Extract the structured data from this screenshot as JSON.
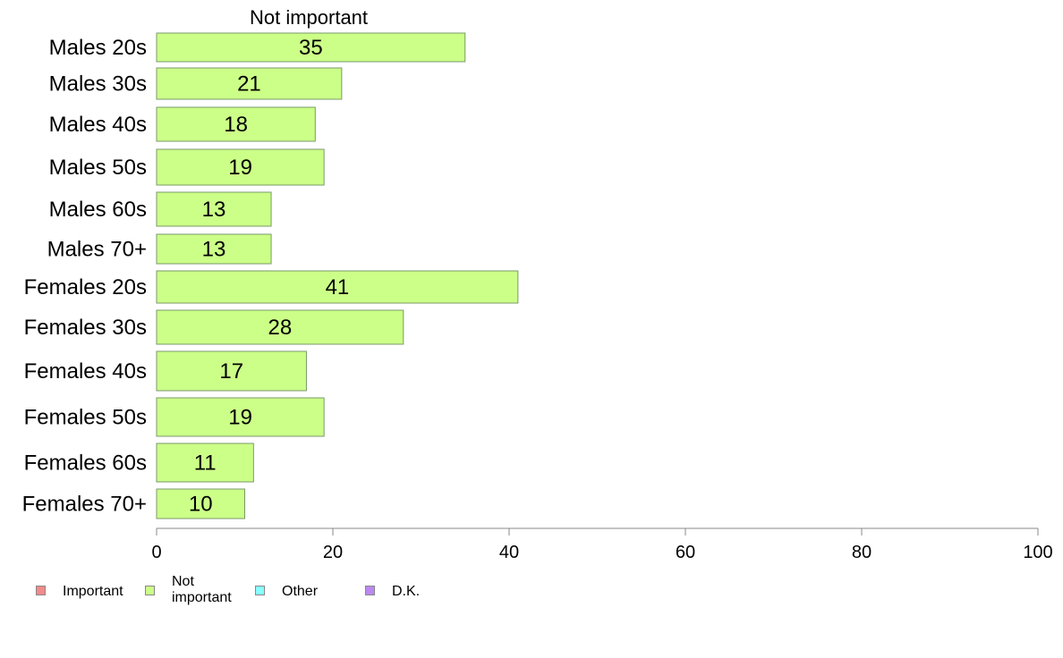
{
  "chart_data": {
    "type": "bar",
    "orientation": "horizontal",
    "title": "Not important",
    "categories": [
      "Males 20s",
      "Males 30s",
      "Males 40s",
      "Males 50s",
      "Males 60s",
      "Males 70+",
      "Females 20s",
      "Females 30s",
      "Females 40s",
      "Females 50s",
      "Females 60s",
      "Females 70+"
    ],
    "series": [
      {
        "name": "Not important",
        "color": "#ccff88",
        "values": [
          35,
          21,
          18,
          19,
          13,
          13,
          41,
          28,
          17,
          19,
          11,
          10
        ],
        "labels": [
          "35",
          "21",
          "18",
          "19",
          "13",
          "13",
          "41",
          "28",
          "17",
          "19",
          "11",
          "10"
        ]
      }
    ],
    "xlim": [
      0,
      100
    ],
    "xticks": [
      "0",
      "20",
      "40",
      "60",
      "80",
      "100"
    ],
    "grid": false,
    "legend_placement": "bottom-left"
  },
  "legend": {
    "items": [
      {
        "label": "Important",
        "color": "#f48a8a"
      },
      {
        "label": "Not\nimportant",
        "color": "#ccff88"
      },
      {
        "label": "Other",
        "color": "#88ffff"
      },
      {
        "label": "D.K.",
        "color": "#bb88ee"
      }
    ]
  }
}
